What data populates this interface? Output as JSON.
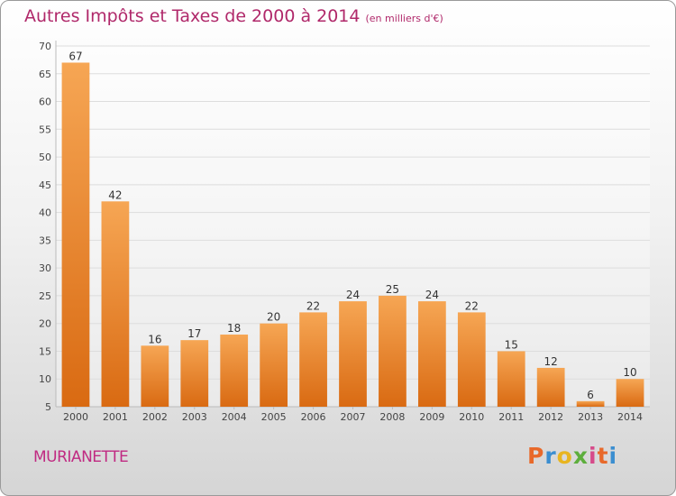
{
  "header": {
    "title": "Autres Impôts et Taxes de 2000 à 2014",
    "unit_note": "(en milliers d'€)"
  },
  "footer": {
    "place_name": "MURIANETTE",
    "brand_name": "Proxiti"
  },
  "colors": {
    "title": "#b0286a",
    "place_name": "#c02a82",
    "bar_top": "#f6a654",
    "bar_bottom": "#d96a12",
    "grid": "#dddddd",
    "axis_text": "#444444"
  },
  "chart_data": {
    "type": "bar",
    "title": "Autres Impôts et Taxes de 2000 à 2014",
    "subtitle": "(en milliers d'€)",
    "xlabel": "",
    "ylabel": "",
    "categories": [
      "2000",
      "2001",
      "2002",
      "2003",
      "2004",
      "2005",
      "2006",
      "2007",
      "2008",
      "2009",
      "2010",
      "2011",
      "2012",
      "2013",
      "2014"
    ],
    "values": [
      67,
      42,
      16,
      17,
      18,
      20,
      22,
      24,
      25,
      24,
      22,
      15,
      12,
      6,
      10
    ],
    "ylim": [
      5,
      70
    ],
    "yticks": [
      5,
      10,
      15,
      20,
      25,
      30,
      35,
      40,
      45,
      50,
      55,
      60,
      65,
      70
    ],
    "grid": true,
    "legend": "none"
  }
}
